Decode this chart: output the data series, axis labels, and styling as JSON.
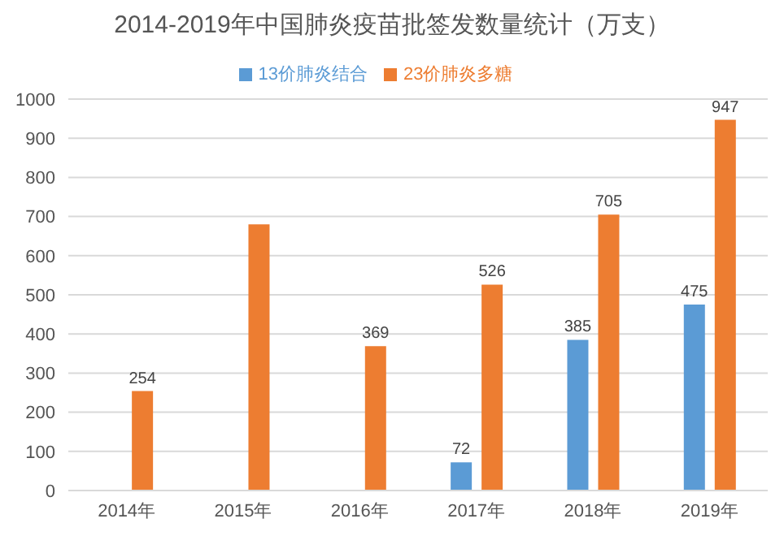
{
  "chart_data": {
    "type": "bar",
    "title": "2014-2019年中国肺炎疫苗批签发数量统计（万支）",
    "categories": [
      "2014年",
      "2015年",
      "2016年",
      "2017年",
      "2018年",
      "2019年"
    ],
    "series": [
      {
        "name": "13价肺炎结合",
        "color": "#5b9bd5",
        "values": [
          null,
          null,
          null,
          72,
          385,
          475
        ],
        "value_labels": [
          null,
          null,
          null,
          "72",
          "385",
          "475"
        ]
      },
      {
        "name": "23价肺炎多糖",
        "color": "#ed7d31",
        "values": [
          254,
          680,
          369,
          526,
          705,
          947
        ],
        "value_labels": [
          "254",
          null,
          "369",
          "526",
          "705",
          "947"
        ]
      }
    ],
    "ylim": [
      0,
      1000
    ],
    "yticks": [
      0,
      100,
      200,
      300,
      400,
      500,
      600,
      700,
      800,
      900,
      1000
    ],
    "grid": "y",
    "legend": "top"
  }
}
